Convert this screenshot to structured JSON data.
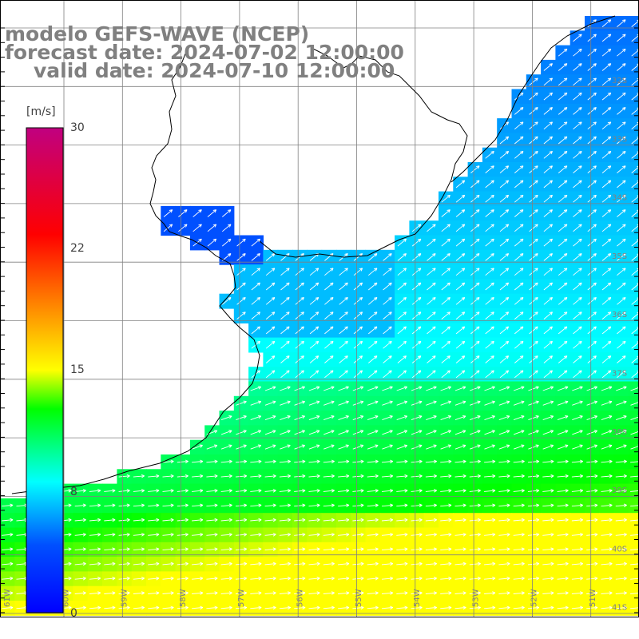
{
  "title": {
    "line1": "modelo GEFS-WAVE (NCEP)",
    "line2": "forecast date: 2024-07-02 12:00:00",
    "line3": "valid date: 2024-07-10 12:00:00"
  },
  "colorbar": {
    "unit": "[m/s]",
    "ticks": [
      {
        "label": "30",
        "value": 30
      },
      {
        "label": "22",
        "value": 22
      },
      {
        "label": "15",
        "value": 15
      },
      {
        "label": "8",
        "value": 8
      },
      {
        "label": "0",
        "value": 0
      }
    ]
  },
  "axes": {
    "lat_labels": [
      "32S",
      "33S",
      "34S",
      "35S",
      "36S",
      "37S",
      "38S",
      "39S",
      "40S",
      "41S"
    ],
    "lon_labels": [
      "61W",
      "60W",
      "59W",
      "58W",
      "57W",
      "56W",
      "55W",
      "54W",
      "53W",
      "52W",
      "51W"
    ]
  },
  "colors": {
    "land": "#ffffff",
    "coast": "#000000",
    "grid": "#808080",
    "arrow": "#ffffff",
    "label_gray": "#808080"
  }
}
